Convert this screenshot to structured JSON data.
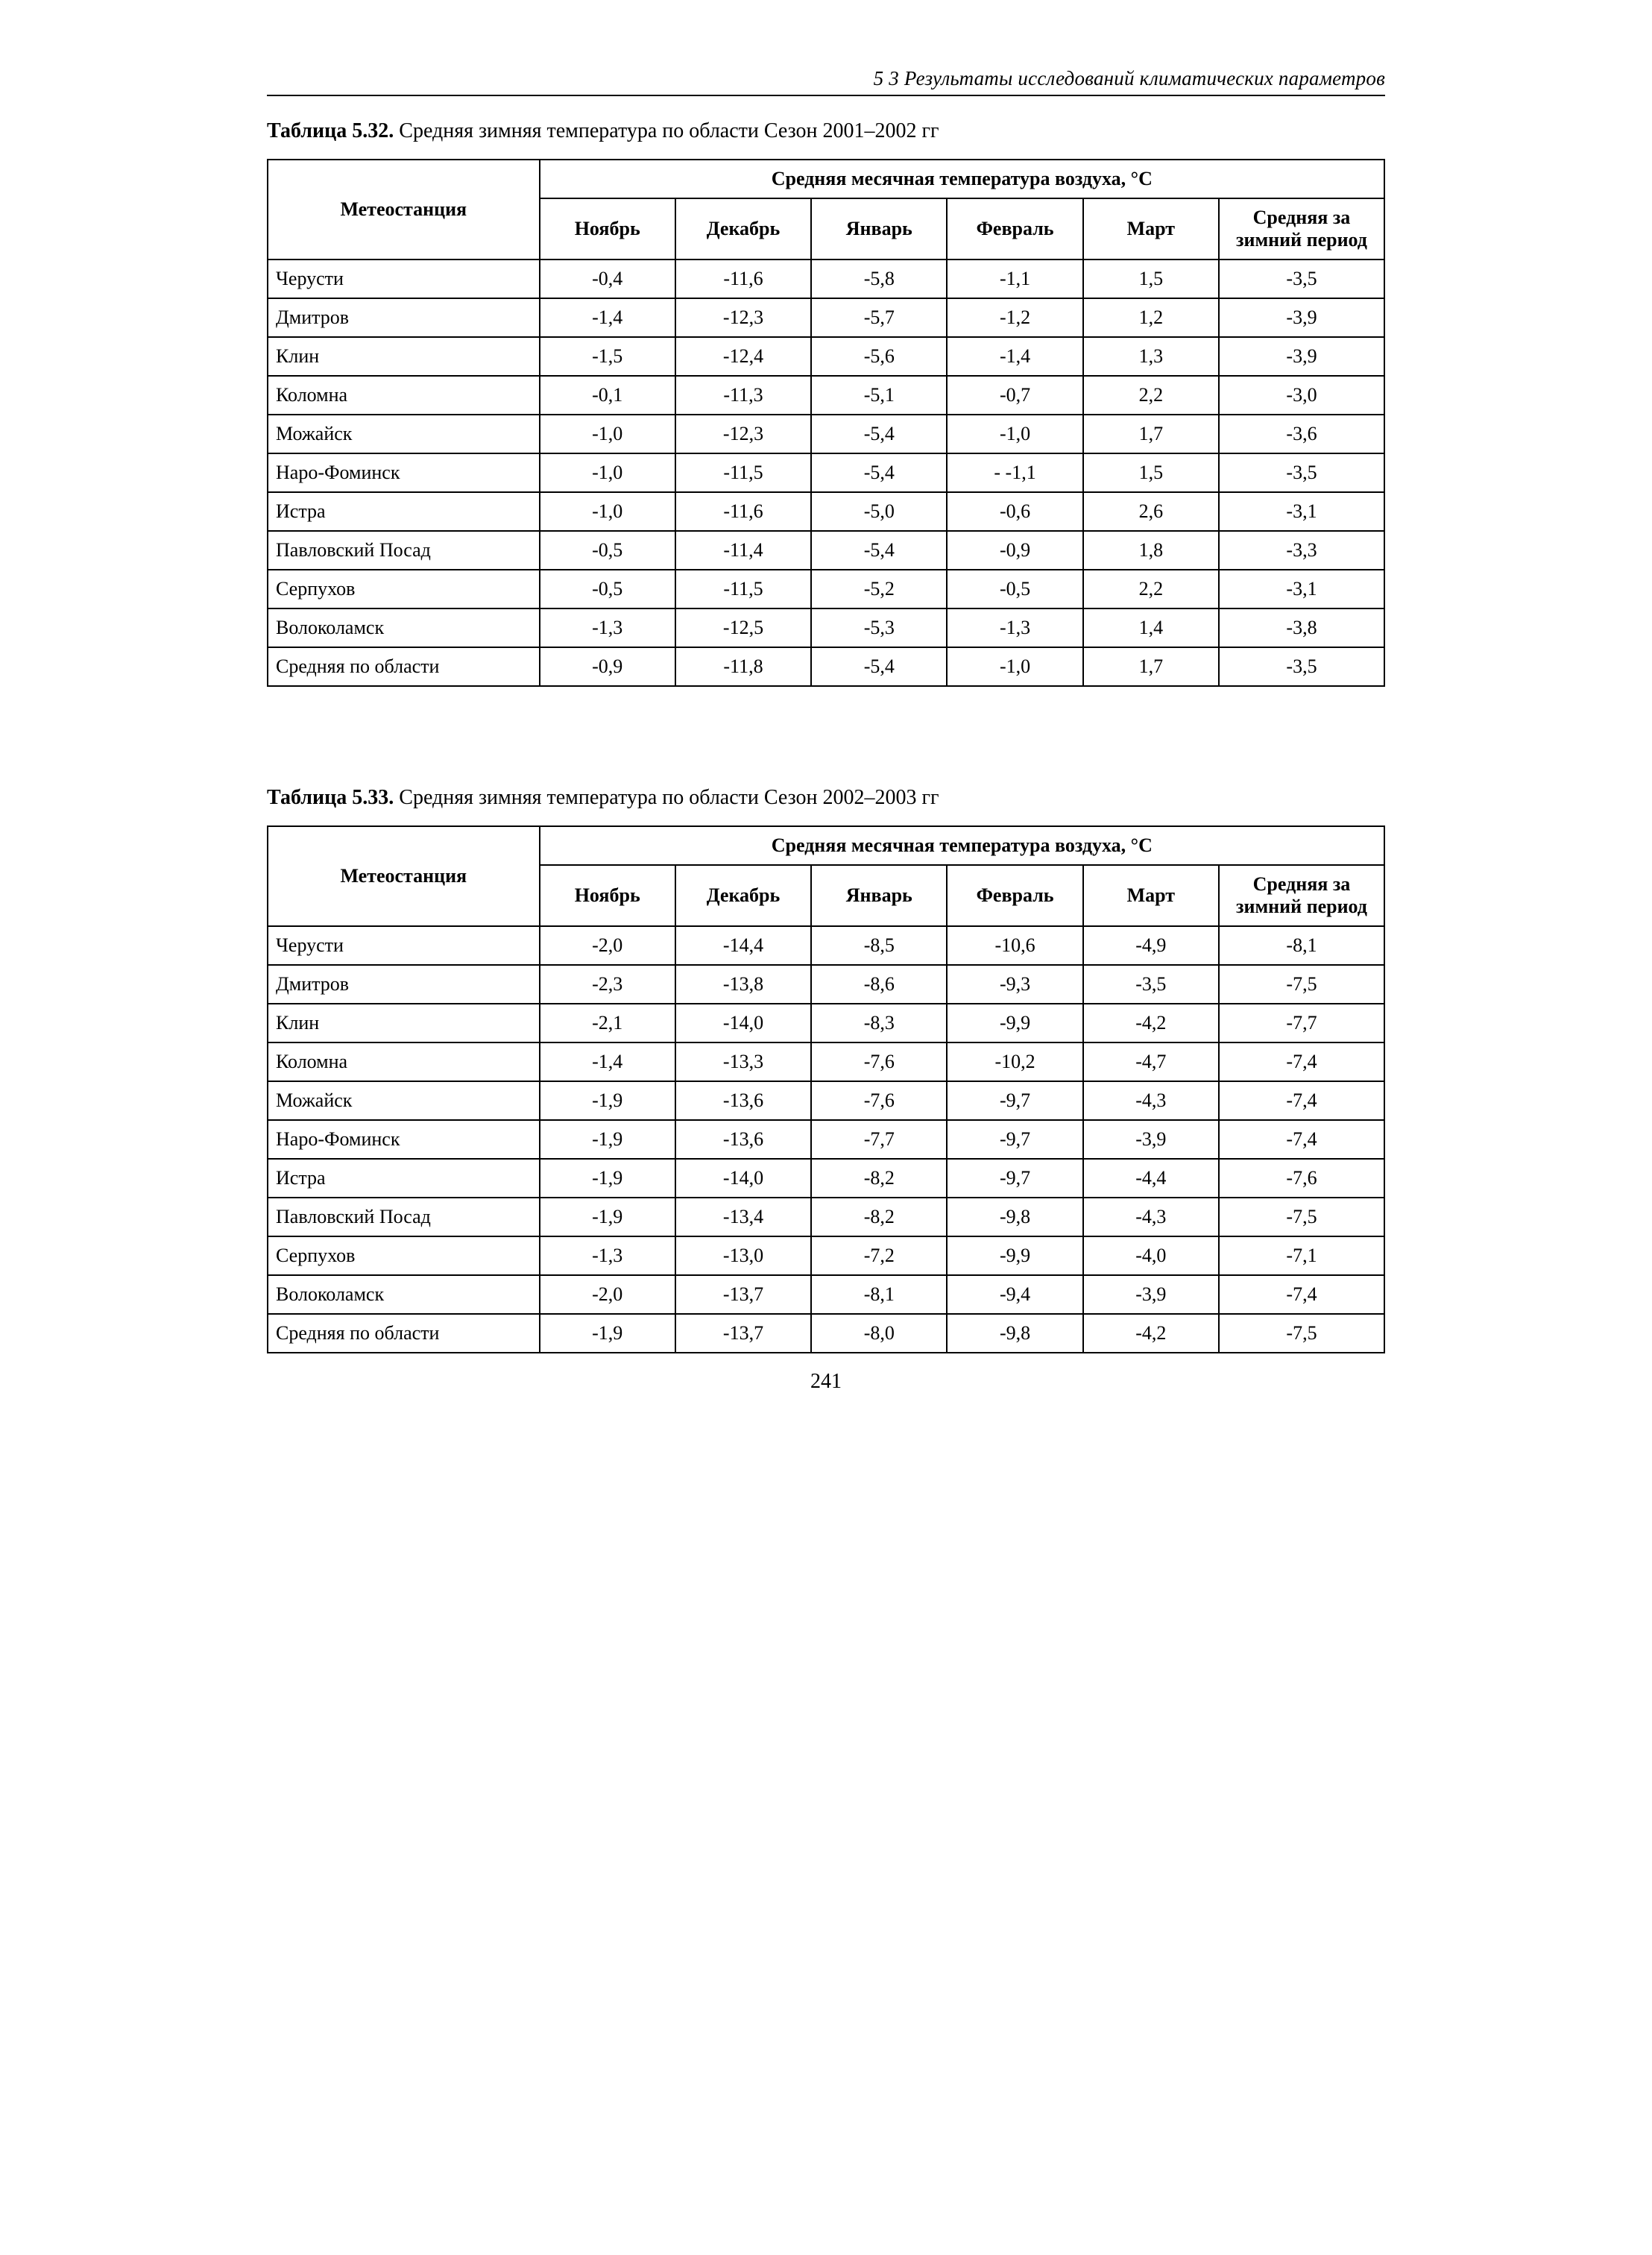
{
  "page": {
    "running_head": "5 3  Результаты исследований климатических параметров",
    "page_number": "241",
    "background_color": "#ffffff",
    "text_color": "#000000",
    "border_color": "#000000",
    "font_family": "Times New Roman",
    "base_fontsize_pt": 12
  },
  "tables": [
    {
      "caption_label": "Таблица 5.32.",
      "caption_text": "Средняя зимняя температура по области  Сезон 2001–2002 гг",
      "group_header": "Средняя месячная температура воздуха, °С",
      "station_header": "Метеостанция",
      "avg_header": "Средняя за зимний период",
      "months": [
        "Ноябрь",
        "Декабрь",
        "Январь",
        "Февраль",
        "Март"
      ],
      "rows": [
        {
          "station": "Черусти",
          "values": [
            "-0,4",
            "-11,6",
            "-5,8",
            "-1,1",
            "1,5",
            "-3,5"
          ]
        },
        {
          "station": "Дмитров",
          "values": [
            "-1,4",
            "-12,3",
            "-5,7",
            "-1,2",
            "1,2",
            "-3,9"
          ]
        },
        {
          "station": "Клин",
          "values": [
            "-1,5",
            "-12,4",
            "-5,6",
            "-1,4",
            "1,3",
            "-3,9"
          ]
        },
        {
          "station": "Коломна",
          "values": [
            "-0,1",
            "-11,3",
            "-5,1",
            "-0,7",
            "2,2",
            "-3,0"
          ]
        },
        {
          "station": "Можайск",
          "values": [
            "-1,0",
            "-12,3",
            "-5,4",
            "-1,0",
            "1,7",
            "-3,6"
          ]
        },
        {
          "station": "Наро-Фоминск",
          "values": [
            "-1,0",
            "-11,5",
            "-5,4",
            "- -1,1",
            "1,5",
            "-3,5"
          ]
        },
        {
          "station": "Истра",
          "values": [
            "-1,0",
            "-11,6",
            "-5,0",
            "-0,6",
            "2,6",
            "-3,1"
          ]
        },
        {
          "station": "Павловский Посад",
          "values": [
            "-0,5",
            "-11,4",
            "-5,4",
            "-0,9",
            "1,8",
            "-3,3"
          ]
        },
        {
          "station": "Серпухов",
          "values": [
            "-0,5",
            "-11,5",
            "-5,2",
            "-0,5",
            "2,2",
            "-3,1"
          ]
        },
        {
          "station": "Волоколамск",
          "values": [
            "-1,3",
            "-12,5",
            "-5,3",
            "-1,3",
            "1,4",
            "-3,8"
          ]
        },
        {
          "station": "Средняя по области",
          "values": [
            "-0,9",
            "-11,8",
            "-5,4",
            "-1,0",
            "1,7",
            "-3,5"
          ]
        }
      ]
    },
    {
      "caption_label": "Таблица 5.33.",
      "caption_text": "Средняя зимняя температура по области  Сезон 2002–2003 гг",
      "group_header": "Средняя месячная температура воздуха, °С",
      "station_header": "Метеостанция",
      "avg_header": "Средняя за зимний период",
      "months": [
        "Ноябрь",
        "Декабрь",
        "Январь",
        "Февраль",
        "Март"
      ],
      "rows": [
        {
          "station": "Черусти",
          "values": [
            "-2,0",
            "-14,4",
            "-8,5",
            "-10,6",
            "-4,9",
            "-8,1"
          ]
        },
        {
          "station": "Дмитров",
          "values": [
            "-2,3",
            "-13,8",
            "-8,6",
            "-9,3",
            "-3,5",
            "-7,5"
          ]
        },
        {
          "station": "Клин",
          "values": [
            "-2,1",
            "-14,0",
            "-8,3",
            "-9,9",
            "-4,2",
            "-7,7"
          ]
        },
        {
          "station": "Коломна",
          "values": [
            "-1,4",
            "-13,3",
            "-7,6",
            "-10,2",
            "-4,7",
            "-7,4"
          ]
        },
        {
          "station": "Можайск",
          "values": [
            "-1,9",
            "-13,6",
            "-7,6",
            "-9,7",
            "-4,3",
            "-7,4"
          ]
        },
        {
          "station": "Наро-Фоминск",
          "values": [
            "-1,9",
            "-13,6",
            "-7,7",
            "-9,7",
            "-3,9",
            "-7,4"
          ]
        },
        {
          "station": "Истра",
          "values": [
            "-1,9",
            "-14,0",
            "-8,2",
            "-9,7",
            "-4,4",
            "-7,6"
          ]
        },
        {
          "station": "Павловский Посад",
          "values": [
            "-1,9",
            "-13,4",
            "-8,2",
            "-9,8",
            "-4,3",
            "-7,5"
          ]
        },
        {
          "station": "Серпухов",
          "values": [
            "-1,3",
            "-13,0",
            "-7,2",
            "-9,9",
            "-4,0",
            "-7,1"
          ]
        },
        {
          "station": "Волоколамск",
          "values": [
            "-2,0",
            "-13,7",
            "-8,1",
            "-9,4",
            "-3,9",
            "-7,4"
          ]
        },
        {
          "station": "Средняя по области",
          "values": [
            "-1,9",
            "-13,7",
            "-8,0",
            "-9,8",
            "-4,2",
            "-7,5"
          ]
        }
      ]
    }
  ]
}
